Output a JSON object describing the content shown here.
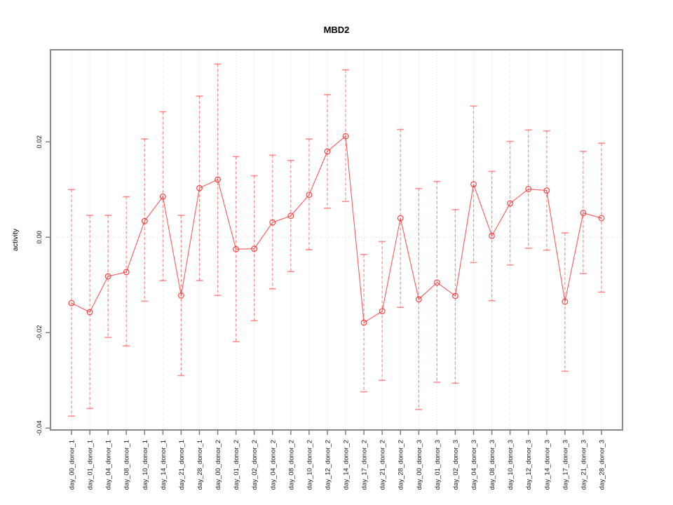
{
  "chart_data": {
    "type": "line",
    "title": "MBD2",
    "xlabel": "",
    "ylabel": "activity",
    "legend": "none",
    "grid": "vertical dotted gridline per category plus dotted horizontal line at 0",
    "ylim": [
      -0.0404,
      0.0393
    ],
    "yticks": [
      -0.04,
      -0.02,
      0.0,
      0.02
    ],
    "ytick_labels": [
      "-0.04",
      "-0.02",
      "0.00",
      "0.02"
    ],
    "categories": [
      "day_00_donor_1",
      "day_01_donor_1",
      "day_04_donor_1",
      "day_08_donor_1",
      "day_10_donor_1",
      "day_14_donor_1",
      "day_21_donor_1",
      "day_28_donor_1",
      "day_00_donor_2",
      "day_01_donor_2",
      "day_02_donor_2",
      "day_04_donor_2",
      "day_08_donor_2",
      "day_10_donor_2",
      "day_12_donor_2",
      "day_14_donor_2",
      "day_17_donor_2",
      "day_21_donor_2",
      "day_28_donor_2",
      "day_00_donor_3",
      "day_01_donor_3",
      "day_02_donor_3",
      "day_04_donor_3",
      "day_08_donor_3",
      "day_10_donor_3",
      "day_12_donor_3",
      "day_14_donor_3",
      "day_17_donor_3",
      "day_21_donor_3",
      "day_28_donor_3"
    ],
    "values": [
      -0.0138,
      -0.0157,
      -0.0082,
      -0.0073,
      0.0034,
      0.0085,
      -0.0122,
      0.0103,
      0.0121,
      -0.0025,
      -0.0024,
      0.0031,
      0.0045,
      0.0089,
      0.018,
      0.0212,
      -0.0179,
      -0.0155,
      0.004,
      -0.013,
      -0.0095,
      -0.0123,
      0.0111,
      0.0003,
      0.0071,
      0.0101,
      0.0098,
      -0.0135,
      0.0051,
      0.004
    ],
    "error_high": [
      0.01,
      0.0046,
      0.0046,
      0.0085,
      0.0206,
      0.0263,
      0.0046,
      0.0296,
      0.0363,
      0.0169,
      0.0129,
      0.0172,
      0.0161,
      0.0206,
      0.0299,
      0.0351,
      -0.0036,
      -0.0009,
      0.0226,
      0.0102,
      0.0117,
      0.0058,
      0.0275,
      0.0138,
      0.0201,
      0.0225,
      0.0223,
      0.0009,
      0.018,
      0.0197
    ],
    "error_low": [
      -0.0375,
      -0.0359,
      -0.021,
      -0.0228,
      -0.0134,
      -0.0091,
      -0.029,
      -0.0091,
      -0.0122,
      -0.0219,
      -0.0175,
      -0.0108,
      -0.0072,
      -0.0026,
      0.0061,
      0.0075,
      -0.0324,
      -0.03,
      -0.0147,
      -0.0361,
      -0.0304,
      -0.0306,
      -0.0053,
      -0.0133,
      -0.0058,
      -0.0023,
      -0.0027,
      -0.0281,
      -0.0076,
      -0.0115
    ],
    "colors": {
      "series": "#fa3030",
      "error_bar": "#ff4646",
      "grid": "#d6d6d6",
      "border": "#888888",
      "tick": "#808080",
      "text": "#000000",
      "background": "#ffffff"
    }
  }
}
